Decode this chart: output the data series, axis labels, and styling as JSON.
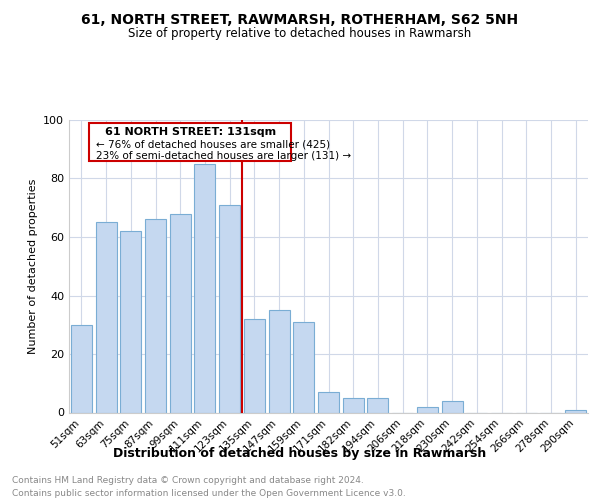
{
  "title": "61, NORTH STREET, RAWMARSH, ROTHERHAM, S62 5NH",
  "subtitle": "Size of property relative to detached houses in Rawmarsh",
  "xlabel": "Distribution of detached houses by size in Rawmarsh",
  "ylabel": "Number of detached properties",
  "categories": [
    "51sqm",
    "63sqm",
    "75sqm",
    "87sqm",
    "99sqm",
    "111sqm",
    "123sqm",
    "135sqm",
    "147sqm",
    "159sqm",
    "171sqm",
    "182sqm",
    "194sqm",
    "206sqm",
    "218sqm",
    "230sqm",
    "242sqm",
    "254sqm",
    "266sqm",
    "278sqm",
    "290sqm"
  ],
  "values": [
    30,
    65,
    62,
    66,
    68,
    85,
    71,
    32,
    35,
    31,
    7,
    5,
    5,
    0,
    2,
    4,
    0,
    0,
    0,
    0,
    1
  ],
  "bar_color": "#c5d8f0",
  "bar_edge_color": "#7aadd4",
  "reference_line_label": "61 NORTH STREET: 131sqm",
  "annotation_line1": "← 76% of detached houses are smaller (425)",
  "annotation_line2": "23% of semi-detached houses are larger (131) →",
  "annotation_box_color": "#cc0000",
  "footer1": "Contains HM Land Registry data © Crown copyright and database right 2024.",
  "footer2": "Contains public sector information licensed under the Open Government Licence v3.0.",
  "ylim": [
    0,
    100
  ],
  "bg_color": "#ffffff",
  "plot_bg_color": "#ffffff"
}
